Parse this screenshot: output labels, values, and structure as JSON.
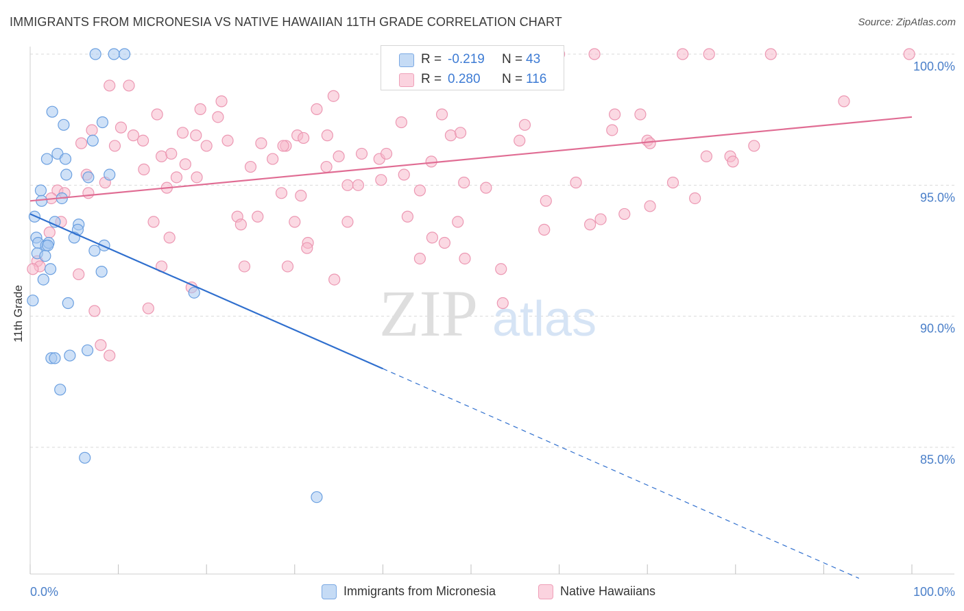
{
  "title": "IMMIGRANTS FROM MICRONESIA VS NATIVE HAWAIIAN 11TH GRADE CORRELATION CHART",
  "source": "Source: ZipAtlas.com",
  "watermark": {
    "zip": "ZIP",
    "atlas": "atlas"
  },
  "legend": {
    "rows": [
      {
        "r_label": "R =",
        "r_value": "-0.219",
        "n_label": "N =",
        "n_value": "43",
        "color": "#a8c8f0"
      },
      {
        "r_label": "R =",
        "r_value": "0.280",
        "n_label": "N =",
        "n_value": "116",
        "color": "#f7b9cc"
      }
    ]
  },
  "bottom_legend": {
    "series1": "Immigrants from Micronesia",
    "series2": "Native Hawaiians"
  },
  "colors": {
    "blue_fill": "#a8c8f0",
    "blue_stroke": "#6a9fe0",
    "blue_line": "#2f6fce",
    "pink_fill": "#f7b9cc",
    "pink_stroke": "#ec97b2",
    "pink_line": "#e06c93",
    "tick_text": "#4a7fc9",
    "grid": "#d9d9d9"
  },
  "chart_data": {
    "type": "scatter",
    "title": "IMMIGRANTS FROM MICRONESIA VS NATIVE HAWAIIAN 11TH GRADE CORRELATION CHART",
    "xlabel": "",
    "ylabel": "11th Grade",
    "xlim": [
      0,
      100
    ],
    "ylim": [
      80.0,
      100.8
    ],
    "x_tick_labels": [
      "0.0%",
      "100.0%"
    ],
    "y_ticks": [
      85.0,
      90.0,
      95.0,
      100.0
    ],
    "y_tick_labels": [
      "85.0%",
      "90.0%",
      "95.0%",
      "100.0%"
    ],
    "grid": true,
    "legend_position": "top-center",
    "series": [
      {
        "name": "Immigrants from Micronesia",
        "color": "#a8c8f0",
        "points": [
          [
            7.4,
            100.0
          ],
          [
            9.5,
            100.0
          ],
          [
            10.7,
            100.0
          ],
          [
            2.5,
            97.8
          ],
          [
            3.8,
            97.3
          ],
          [
            8.2,
            97.4
          ],
          [
            7.1,
            96.7
          ],
          [
            1.9,
            96.0
          ],
          [
            3.1,
            96.2
          ],
          [
            4.0,
            96.0
          ],
          [
            4.1,
            95.4
          ],
          [
            6.6,
            95.3
          ],
          [
            9.0,
            95.4
          ],
          [
            1.2,
            94.8
          ],
          [
            1.3,
            94.4
          ],
          [
            3.6,
            94.5
          ],
          [
            0.5,
            93.8
          ],
          [
            2.8,
            93.6
          ],
          [
            5.5,
            93.5
          ],
          [
            5.4,
            93.3
          ],
          [
            0.7,
            93.0
          ],
          [
            0.9,
            92.8
          ],
          [
            5.0,
            93.0
          ],
          [
            1.8,
            92.7
          ],
          [
            2.1,
            92.8
          ],
          [
            2.0,
            92.7
          ],
          [
            8.4,
            92.7
          ],
          [
            0.8,
            92.4
          ],
          [
            7.3,
            92.5
          ],
          [
            1.7,
            92.3
          ],
          [
            2.3,
            91.8
          ],
          [
            8.1,
            91.7
          ],
          [
            1.5,
            91.4
          ],
          [
            0.3,
            90.6
          ],
          [
            4.3,
            90.5
          ],
          [
            18.6,
            90.9
          ],
          [
            4.5,
            88.5
          ],
          [
            6.5,
            88.7
          ],
          [
            2.4,
            88.4
          ],
          [
            2.8,
            88.4
          ],
          [
            3.4,
            87.2
          ],
          [
            6.2,
            84.6
          ],
          [
            32.5,
            83.1
          ]
        ]
      },
      {
        "name": "Native Hawaiians",
        "color": "#f7b9cc",
        "points": [
          [
            42.0,
            100.0
          ],
          [
            45.0,
            100.0
          ],
          [
            58.0,
            100.0
          ],
          [
            60.0,
            100.0
          ],
          [
            64.0,
            100.0
          ],
          [
            74.0,
            100.0
          ],
          [
            77.0,
            100.0
          ],
          [
            84.0,
            100.0
          ],
          [
            99.7,
            100.0
          ],
          [
            9.0,
            98.8
          ],
          [
            11.2,
            98.8
          ],
          [
            34.4,
            98.4
          ],
          [
            21.7,
            98.2
          ],
          [
            32.5,
            97.9
          ],
          [
            19.3,
            97.9
          ],
          [
            46.7,
            97.7
          ],
          [
            66.3,
            97.7
          ],
          [
            92.3,
            98.2
          ],
          [
            14.4,
            97.7
          ],
          [
            21.3,
            97.6
          ],
          [
            42.1,
            97.4
          ],
          [
            69.2,
            97.7
          ],
          [
            7.0,
            97.1
          ],
          [
            10.3,
            97.2
          ],
          [
            17.3,
            97.0
          ],
          [
            18.8,
            96.9
          ],
          [
            22.4,
            96.7
          ],
          [
            12.8,
            96.7
          ],
          [
            11.7,
            96.9
          ],
          [
            26.2,
            96.6
          ],
          [
            29.0,
            96.5
          ],
          [
            33.7,
            96.9
          ],
          [
            47.7,
            96.9
          ],
          [
            48.8,
            97.0
          ],
          [
            56.1,
            97.3
          ],
          [
            55.5,
            96.7
          ],
          [
            66.0,
            97.1
          ],
          [
            70.0,
            96.7
          ],
          [
            5.8,
            96.6
          ],
          [
            9.6,
            96.5
          ],
          [
            14.9,
            96.1
          ],
          [
            16.0,
            96.2
          ],
          [
            17.6,
            95.8
          ],
          [
            20.0,
            96.5
          ],
          [
            28.7,
            96.5
          ],
          [
            30.3,
            96.9
          ],
          [
            31.0,
            96.8
          ],
          [
            35.0,
            96.1
          ],
          [
            37.6,
            96.2
          ],
          [
            39.6,
            96.0
          ],
          [
            27.5,
            96.0
          ],
          [
            25.0,
            95.7
          ],
          [
            33.6,
            95.7
          ],
          [
            40.4,
            96.2
          ],
          [
            70.3,
            96.6
          ],
          [
            82.1,
            96.5
          ],
          [
            76.7,
            96.1
          ],
          [
            79.4,
            96.1
          ],
          [
            79.7,
            95.9
          ],
          [
            12.9,
            95.6
          ],
          [
            6.4,
            95.4
          ],
          [
            8.5,
            95.1
          ],
          [
            16.6,
            95.3
          ],
          [
            15.5,
            94.9
          ],
          [
            18.9,
            95.3
          ],
          [
            36.0,
            95.0
          ],
          [
            37.2,
            95.0
          ],
          [
            39.8,
            95.2
          ],
          [
            42.4,
            95.4
          ],
          [
            45.5,
            95.9
          ],
          [
            49.2,
            95.1
          ],
          [
            44.2,
            94.8
          ],
          [
            61.9,
            95.1
          ],
          [
            72.9,
            95.1
          ],
          [
            3.1,
            94.8
          ],
          [
            3.9,
            94.7
          ],
          [
            6.6,
            94.7
          ],
          [
            2.4,
            94.5
          ],
          [
            28.5,
            94.7
          ],
          [
            30.7,
            94.6
          ],
          [
            51.7,
            94.9
          ],
          [
            58.5,
            94.4
          ],
          [
            70.3,
            94.2
          ],
          [
            75.4,
            94.5
          ],
          [
            3.5,
            93.6
          ],
          [
            14.0,
            93.6
          ],
          [
            23.5,
            93.8
          ],
          [
            23.9,
            93.5
          ],
          [
            25.8,
            93.8
          ],
          [
            30.0,
            93.6
          ],
          [
            36.0,
            93.6
          ],
          [
            42.8,
            93.8
          ],
          [
            48.5,
            93.6
          ],
          [
            58.3,
            93.3
          ],
          [
            63.5,
            93.5
          ],
          [
            64.7,
            93.7
          ],
          [
            67.4,
            93.9
          ],
          [
            2.2,
            93.2
          ],
          [
            15.8,
            93.0
          ],
          [
            31.5,
            92.8
          ],
          [
            31.4,
            92.6
          ],
          [
            45.6,
            93.0
          ],
          [
            47.0,
            92.8
          ],
          [
            44.2,
            92.2
          ],
          [
            49.3,
            92.2
          ],
          [
            0.8,
            92.1
          ],
          [
            1.1,
            91.9
          ],
          [
            14.9,
            91.9
          ],
          [
            24.3,
            91.9
          ],
          [
            29.2,
            91.9
          ],
          [
            53.4,
            91.8
          ],
          [
            34.5,
            91.4
          ],
          [
            5.5,
            91.6
          ],
          [
            18.3,
            91.1
          ],
          [
            0.3,
            91.8
          ],
          [
            13.4,
            90.3
          ],
          [
            53.6,
            90.5
          ],
          [
            7.3,
            90.2
          ],
          [
            8.0,
            88.9
          ],
          [
            9.0,
            88.5
          ]
        ]
      }
    ],
    "trend_lines": [
      {
        "series": "Immigrants from Micronesia",
        "solid": [
          [
            0,
            93.9
          ],
          [
            40,
            88.0
          ]
        ],
        "dashed": [
          [
            40,
            88.0
          ],
          [
            94,
            80.0
          ]
        ]
      },
      {
        "series": "Native Hawaiians",
        "solid": [
          [
            0,
            94.4
          ],
          [
            100,
            97.6
          ]
        ]
      }
    ]
  }
}
